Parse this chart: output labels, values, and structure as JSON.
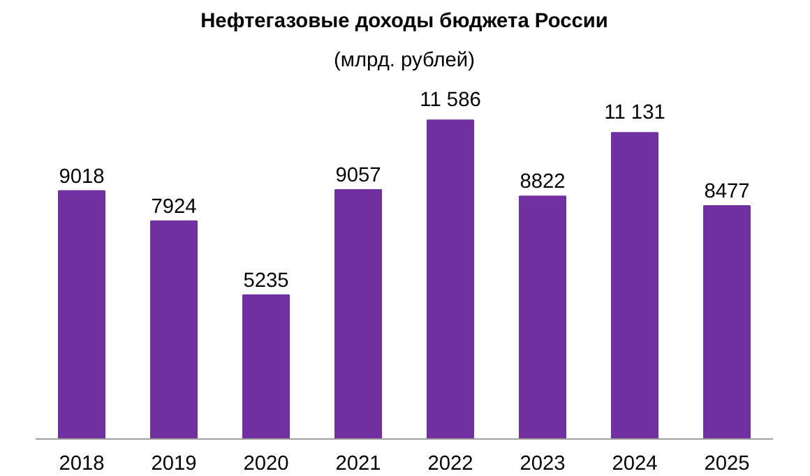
{
  "chart_data": {
    "type": "bar",
    "title": "Нефтегазовые доходы бюджета России",
    "subtitle": "(млрд. рублей)",
    "categories": [
      "2018",
      "2019",
      "2020",
      "2021",
      "2022",
      "2023",
      "2024",
      "2025"
    ],
    "values": [
      9018,
      7924,
      5235,
      9057,
      11586,
      8822,
      11131,
      8477
    ],
    "value_labels": [
      "9018",
      "7924",
      "5235",
      "9057",
      "11 586",
      "8822",
      "11 131",
      "8477"
    ],
    "color": "#7030a0",
    "grid": false
  }
}
